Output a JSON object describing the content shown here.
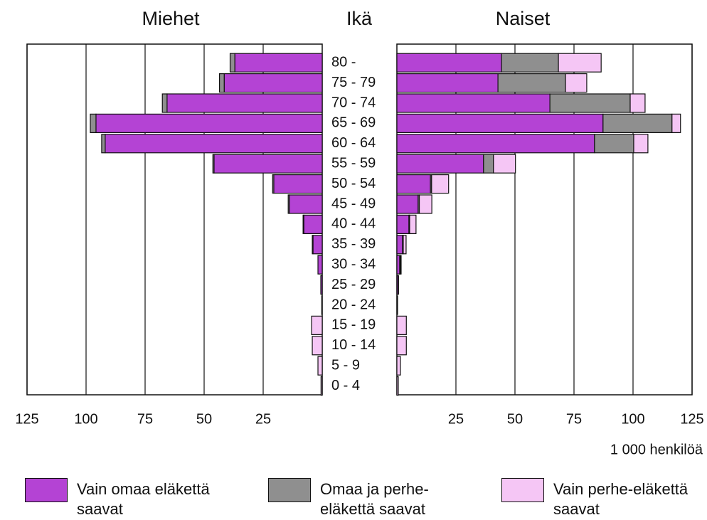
{
  "chart_data": {
    "type": "pyramid",
    "left_title": "Miehet",
    "center_title": "Ikä",
    "right_title": "Naiset",
    "unit_label": "1 000 henkilöä",
    "categories": [
      "80 -",
      "75 - 79",
      "70 - 74",
      "65 - 69",
      "60 - 64",
      "55 - 59",
      "50 - 54",
      "45 - 49",
      "40 - 44",
      "35 - 39",
      "30 - 34",
      "25 - 29",
      "20 - 24",
      "15 - 19",
      "10 - 14",
      "5 -  9",
      "0 -  4"
    ],
    "series": [
      {
        "name": "Vain omaa eläkettä saavat",
        "color": "#b443d4",
        "men": [
          37,
          41.5,
          65.7,
          95.8,
          91.9,
          45.8,
          20.5,
          13.9,
          7.8,
          3.9,
          1.8,
          0.6,
          0.2,
          0,
          0,
          0,
          0
        ],
        "women": [
          44.3,
          42.8,
          64.8,
          87.3,
          83.7,
          36.7,
          14.2,
          9,
          5.1,
          2.4,
          1.2,
          0.5,
          0.3,
          0,
          0,
          0,
          0
        ]
      },
      {
        "name": "Omaa ja perhe-eläkettä saavat",
        "color": "#8f8f8f",
        "men": [
          2,
          2,
          2,
          2.4,
          1.5,
          0.5,
          0.5,
          0.5,
          0.3,
          0.3,
          0,
          0,
          0,
          0,
          0,
          0,
          0
        ],
        "women": [
          24.1,
          28.6,
          34,
          29.2,
          16.6,
          4.2,
          0.5,
          0.5,
          0.3,
          0.3,
          0.3,
          0,
          0,
          0,
          0,
          0,
          0
        ]
      },
      {
        "name": "Vain perhe-eläkettä saavat",
        "color": "#f5c6f5",
        "men": [
          0,
          0,
          0,
          0,
          0,
          0,
          0,
          0,
          0,
          0,
          0,
          0,
          0,
          4.5,
          4.2,
          1.8,
          0.5
        ],
        "women": [
          18.1,
          9,
          6.3,
          3.6,
          6,
          9.3,
          7.2,
          5.3,
          2.7,
          1.2,
          0.3,
          0.2,
          0,
          4,
          4,
          1.5,
          0.6
        ]
      }
    ],
    "xlim": [
      0,
      125
    ],
    "xticks": [
      25,
      50,
      75,
      100,
      125
    ],
    "grid": true
  }
}
